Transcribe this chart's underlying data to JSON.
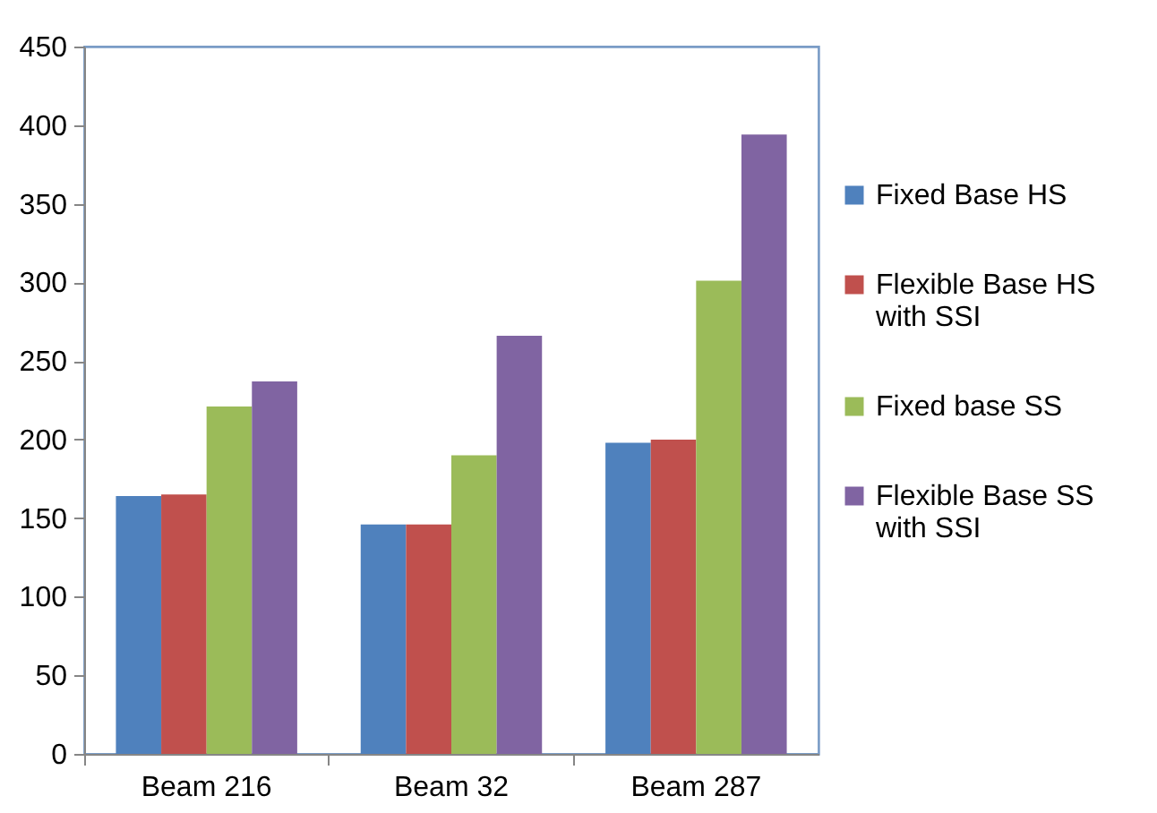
{
  "chart_data": {
    "type": "bar",
    "categories": [
      "Beam 216",
      "Beam 32",
      "Beam 287"
    ],
    "series": [
      {
        "name": "Fixed Base HS",
        "color": "#4f81bd",
        "values": [
          164,
          146,
          198
        ]
      },
      {
        "name": "Flexible Base HS with SSI",
        "color": "#c0504d",
        "values": [
          165,
          146,
          200
        ]
      },
      {
        "name": "Fixed base SS",
        "color": "#9bbb59",
        "values": [
          221,
          190,
          301
        ]
      },
      {
        "name": "Flexible Base SS with SSI",
        "color": "#8064a2",
        "values": [
          237,
          266,
          394
        ]
      }
    ],
    "ylim": [
      0,
      450
    ],
    "yticks": [
      0,
      50,
      100,
      150,
      200,
      250,
      300,
      350,
      400,
      450
    ],
    "grid": false,
    "legend": "right"
  }
}
